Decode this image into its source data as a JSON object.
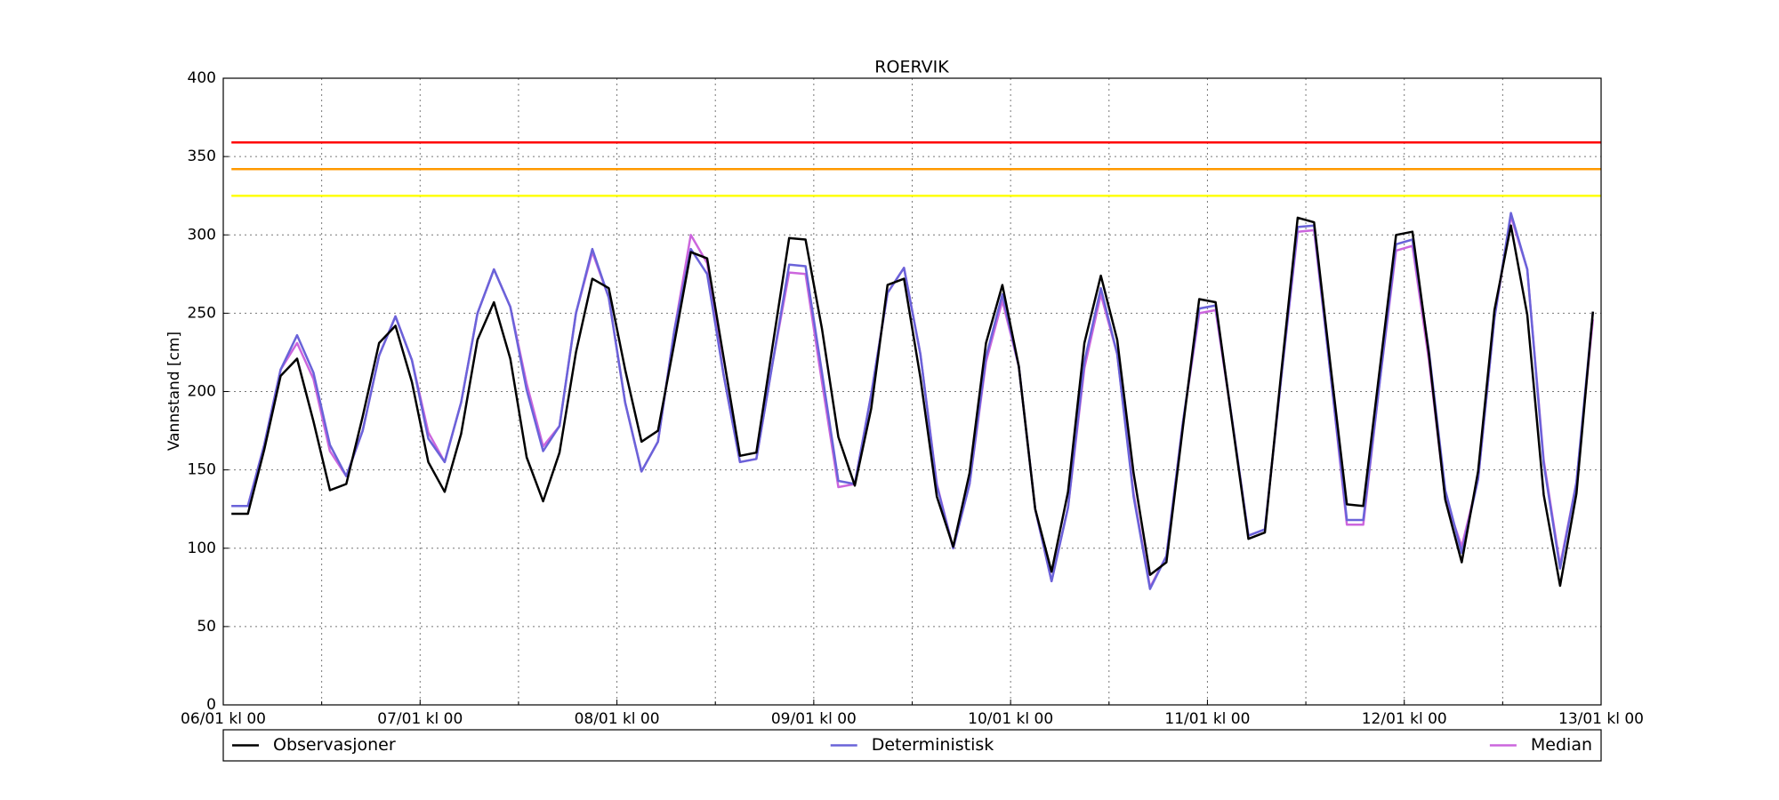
{
  "chart_data": {
    "type": "line",
    "title": "ROERVIK",
    "ylabel": "Vannstand [cm]",
    "x": [
      1,
      3,
      5,
      7,
      9,
      11,
      13,
      15,
      17,
      19,
      21,
      23,
      25,
      27,
      29,
      31,
      33,
      35,
      37,
      39,
      41,
      43,
      45,
      47,
      49,
      51,
      53,
      55,
      57,
      59,
      61,
      63,
      65,
      67,
      69,
      71,
      73,
      75,
      77,
      79,
      81,
      83,
      85,
      87,
      89,
      91,
      93,
      95,
      97,
      99,
      101,
      103,
      105,
      107,
      109,
      111,
      113,
      115,
      117,
      119,
      121,
      123,
      125,
      127,
      129,
      131,
      133,
      135,
      137,
      139,
      141,
      143,
      145,
      147,
      149,
      151,
      153,
      155,
      157,
      159,
      161,
      163,
      165,
      167
    ],
    "series": [
      {
        "name": "Observasjoner",
        "color": "#000000",
        "values": [
          122,
          122,
          163,
          210,
          221,
          181,
          137,
          141,
          184,
          231,
          242,
          206,
          155,
          136,
          173,
          233,
          257,
          221,
          158,
          130,
          161,
          225,
          272,
          266,
          214,
          168,
          175,
          231,
          289,
          285,
          222,
          159,
          161,
          230,
          298,
          297,
          240,
          171,
          140,
          189,
          268,
          272,
          209,
          133,
          101,
          148,
          231,
          268,
          216,
          125,
          85,
          136,
          231,
          274,
          233,
          148,
          83,
          91,
          177,
          259,
          257,
          181,
          106,
          110,
          212,
          311,
          308,
          217,
          128,
          127,
          214,
          300,
          302,
          224,
          131,
          91,
          149,
          252,
          306,
          249,
          134,
          76,
          135,
          251
        ]
      },
      {
        "name": "Deterministisk",
        "color": "#6a63d9",
        "values": [
          127,
          127,
          166,
          214,
          236,
          212,
          166,
          146,
          175,
          223,
          248,
          220,
          170,
          155,
          193,
          250,
          278,
          254,
          201,
          162,
          178,
          250,
          291,
          260,
          193,
          149,
          168,
          239,
          291,
          275,
          211,
          155,
          157,
          219,
          281,
          280,
          212,
          143,
          141,
          198,
          263,
          279,
          224,
          140,
          100,
          141,
          222,
          262,
          216,
          125,
          79,
          126,
          219,
          266,
          224,
          133,
          74,
          95,
          180,
          253,
          255,
          182,
          108,
          112,
          209,
          305,
          306,
          212,
          118,
          118,
          206,
          294,
          297,
          226,
          137,
          97,
          144,
          247,
          314,
          278,
          154,
          87,
          142,
          251
        ]
      },
      {
        "name": "Median",
        "color": "#cc66dd",
        "values": [
          127,
          127,
          166,
          214,
          231,
          208,
          162,
          146,
          175,
          223,
          248,
          220,
          174,
          155,
          193,
          250,
          278,
          254,
          205,
          165,
          178,
          250,
          289,
          260,
          193,
          149,
          168,
          239,
          300,
          282,
          211,
          155,
          157,
          219,
          276,
          275,
          206,
          139,
          141,
          198,
          263,
          279,
          224,
          141,
          100,
          141,
          219,
          258,
          216,
          125,
          79,
          126,
          215,
          262,
          224,
          135,
          75,
          95,
          180,
          250,
          252,
          182,
          108,
          112,
          209,
          302,
          303,
          212,
          115,
          115,
          206,
          290,
          293,
          220,
          132,
          101,
          144,
          247,
          312,
          278,
          156,
          89,
          142,
          246
        ]
      }
    ],
    "thresholds": [
      {
        "value": 359,
        "color": "#ff0000"
      },
      {
        "value": 342,
        "color": "#ff9900"
      },
      {
        "value": 325,
        "color": "#ffff00"
      }
    ],
    "xlim": [
      0,
      168
    ],
    "xticks": [
      {
        "value": 0,
        "label": "06/01 kl 00"
      },
      {
        "value": 24,
        "label": "07/01 kl 00"
      },
      {
        "value": 48,
        "label": "08/01 kl 00"
      },
      {
        "value": 72,
        "label": "09/01 kl 00"
      },
      {
        "value": 96,
        "label": "10/01 kl 00"
      },
      {
        "value": 120,
        "label": "11/01 kl 00"
      },
      {
        "value": 144,
        "label": "12/01 kl 00"
      },
      {
        "value": 168,
        "label": "13/01 kl 00"
      }
    ],
    "xminor": [
      12,
      36,
      60,
      84,
      108,
      132,
      156
    ],
    "ylim": [
      0,
      400
    ],
    "yticks": [
      0,
      50,
      100,
      150,
      200,
      250,
      300,
      350,
      400
    ],
    "grid": true,
    "legend": "below"
  }
}
